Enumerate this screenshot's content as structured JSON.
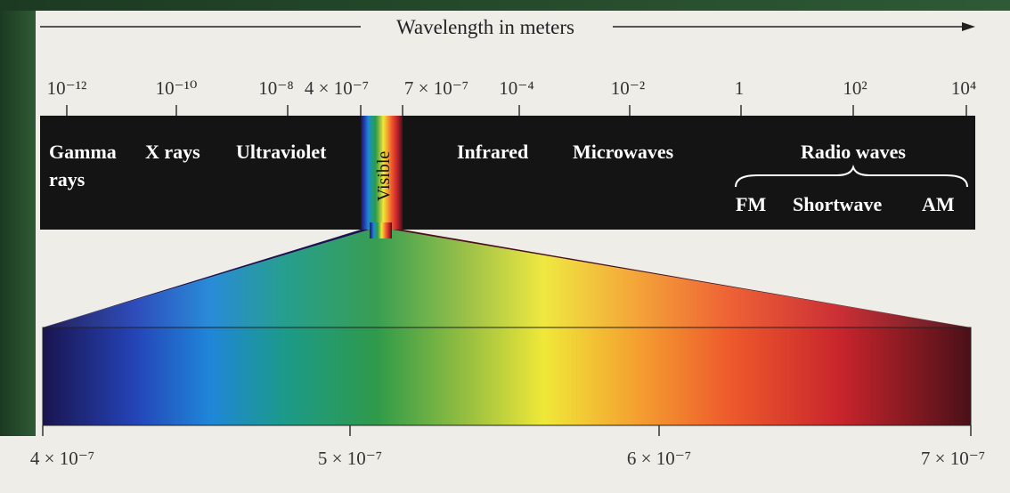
{
  "title": "Wavelength in meters",
  "top_scale": {
    "ticks": [
      "10⁻¹²",
      "10⁻¹⁰",
      "10⁻⁸",
      "4 × 10⁻⁷",
      "7 × 10⁻⁷",
      "10⁻⁴",
      "10⁻²",
      "1",
      "10²",
      "10⁴"
    ]
  },
  "bands": [
    "Gamma",
    "rays",
    "X rays",
    "Ultraviolet",
    "Visible",
    "Infrared",
    "Microwaves",
    "Radio waves"
  ],
  "radio_subbands": [
    "FM",
    "Shortwave",
    "AM"
  ],
  "visible_scale": {
    "ticks": [
      "4 × 10⁻⁷",
      "5 × 10⁻⁷",
      "6 × 10⁻⁷",
      "7 × 10⁻⁷"
    ]
  }
}
